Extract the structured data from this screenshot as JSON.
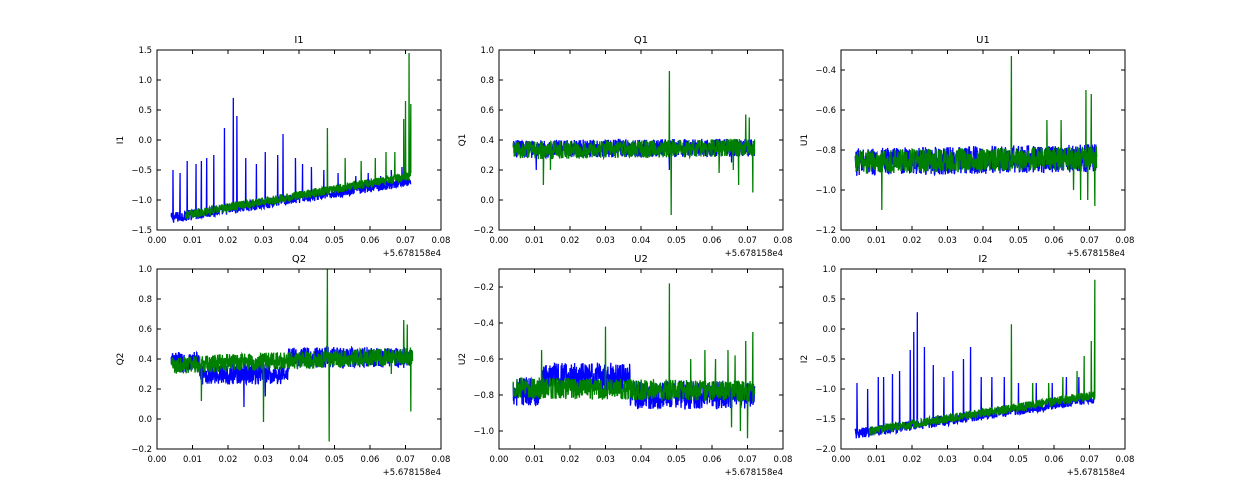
{
  "chart_data": [
    {
      "type": "line",
      "title": "I1",
      "ylabel": "I1",
      "xlabel": "",
      "x_offset_label": "+5.678158e4",
      "xlim": [
        0.0,
        0.08
      ],
      "ylim": [
        -1.5,
        1.5
      ],
      "xticks": [
        "0.00",
        "0.01",
        "0.02",
        "0.03",
        "0.04",
        "0.05",
        "0.06",
        "0.07",
        "0.08"
      ],
      "yticks": [
        "−1.5",
        "−1.0",
        "−0.5",
        "0.0",
        "0.5",
        "1.0",
        "1.5"
      ],
      "series": [
        {
          "color": "#0000ff",
          "x_range": [
            0.004,
            0.0715
          ],
          "base_start": -1.3,
          "base_end": -0.68,
          "band": 0.18,
          "spikes": [
            [
              0.0045,
              -0.5
            ],
            [
              0.0065,
              -0.55
            ],
            [
              0.0085,
              -0.35
            ],
            [
              0.011,
              -0.4
            ],
            [
              0.0125,
              -0.35
            ],
            [
              0.014,
              -0.3
            ],
            [
              0.016,
              -0.25
            ],
            [
              0.019,
              0.2
            ],
            [
              0.0215,
              0.7
            ],
            [
              0.0225,
              0.4
            ],
            [
              0.025,
              -0.3
            ],
            [
              0.028,
              -0.4
            ],
            [
              0.0305,
              -0.2
            ],
            [
              0.034,
              -0.25
            ],
            [
              0.0355,
              0.1
            ],
            [
              0.039,
              -0.3
            ],
            [
              0.041,
              -0.4
            ],
            [
              0.0435,
              -0.45
            ],
            [
              0.047,
              -0.5
            ],
            [
              0.051,
              -0.55
            ],
            [
              0.056,
              -0.6
            ],
            [
              0.0595,
              -0.55
            ],
            [
              0.063,
              -0.6
            ],
            [
              0.066,
              -0.5
            ],
            [
              0.069,
              -0.45
            ]
          ]
        },
        {
          "color": "#008000",
          "x_range": [
            0.008,
            0.0715
          ],
          "base_start": -1.25,
          "base_end": -0.6,
          "band": 0.15,
          "spikes": [
            [
              0.048,
              0.2
            ],
            [
              0.053,
              -0.3
            ],
            [
              0.0575,
              -0.35
            ],
            [
              0.0615,
              -0.3
            ],
            [
              0.0645,
              -0.2
            ],
            [
              0.067,
              -0.2
            ],
            [
              0.0695,
              0.35
            ],
            [
              0.07,
              0.65
            ],
            [
              0.071,
              1.45
            ],
            [
              0.0715,
              0.6
            ]
          ]
        }
      ]
    },
    {
      "type": "line",
      "title": "Q1",
      "ylabel": "Q1",
      "xlabel": "",
      "x_offset_label": "+5.678158e4",
      "xlim": [
        0.0,
        0.08
      ],
      "ylim": [
        -0.2,
        1.0
      ],
      "xticks": [
        "0.00",
        "0.01",
        "0.02",
        "0.03",
        "0.04",
        "0.05",
        "0.06",
        "0.07",
        "0.08"
      ],
      "yticks": [
        "−0.2",
        "0.0",
        "0.2",
        "0.4",
        "0.6",
        "0.8",
        "1.0"
      ],
      "series": [
        {
          "color": "#0000ff",
          "x_range": [
            0.004,
            0.072
          ],
          "base_start": 0.34,
          "base_end": 0.35,
          "band": 0.12,
          "spikes": [
            [
              0.0105,
              0.2
            ],
            [
              0.048,
              0.2
            ],
            [
              0.0655,
              0.25
            ]
          ]
        },
        {
          "color": "#008000",
          "x_range": [
            0.004,
            0.072
          ],
          "base_start": 0.33,
          "base_end": 0.35,
          "band": 0.12,
          "spikes": [
            [
              0.0125,
              0.1
            ],
            [
              0.0145,
              0.2
            ],
            [
              0.048,
              0.86
            ],
            [
              0.0485,
              -0.1
            ],
            [
              0.062,
              0.18
            ],
            [
              0.066,
              0.2
            ],
            [
              0.0675,
              0.1
            ],
            [
              0.0695,
              0.57
            ],
            [
              0.0705,
              0.55
            ],
            [
              0.0715,
              0.05
            ]
          ]
        }
      ]
    },
    {
      "type": "line",
      "title": "U1",
      "ylabel": "U1",
      "xlabel": "",
      "x_offset_label": "+5.678158e4",
      "xlim": [
        0.0,
        0.08
      ],
      "ylim": [
        -1.2,
        -0.3
      ],
      "xticks": [
        "0.00",
        "0.01",
        "0.02",
        "0.03",
        "0.04",
        "0.05",
        "0.06",
        "0.07",
        "0.08"
      ],
      "yticks": [
        "−1.2",
        "−1.0",
        "−0.8",
        "−0.6",
        "−0.4"
      ],
      "series": [
        {
          "color": "#0000ff",
          "x_range": [
            0.004,
            0.072
          ],
          "base_start": -0.86,
          "base_end": -0.84,
          "band": 0.14,
          "spikes": []
        },
        {
          "color": "#008000",
          "x_range": [
            0.004,
            0.072
          ],
          "base_start": -0.86,
          "base_end": -0.84,
          "band": 0.12,
          "spikes": [
            [
              0.0115,
              -1.1
            ],
            [
              0.048,
              -0.33
            ],
            [
              0.058,
              -0.65
            ],
            [
              0.062,
              -0.65
            ],
            [
              0.0655,
              -0.6
            ],
            [
              0.0675,
              -0.55
            ],
            [
              0.069,
              -0.5
            ],
            [
              0.0705,
              -0.52
            ],
            [
              0.0715,
              -0.45
            ],
            [
              0.0695,
              -1.05
            ],
            [
              0.0675,
              -1.05
            ],
            [
              0.0655,
              -1.0
            ],
            [
              0.0715,
              -1.08
            ]
          ]
        }
      ]
    },
    {
      "type": "line",
      "title": "Q2",
      "ylabel": "Q2",
      "xlabel": "",
      "x_offset_label": "+5.678158e4",
      "xlim": [
        0.0,
        0.08
      ],
      "ylim": [
        -0.2,
        1.0
      ],
      "xticks": [
        "0.00",
        "0.01",
        "0.02",
        "0.03",
        "0.04",
        "0.05",
        "0.06",
        "0.07",
        "0.08"
      ],
      "yticks": [
        "−0.2",
        "0.0",
        "0.2",
        "0.4",
        "0.6",
        "0.8",
        "1.0"
      ],
      "series": [
        {
          "color": "#0000ff",
          "x_range": [
            0.004,
            0.072
          ],
          "base_start": 0.38,
          "base_end": 0.42,
          "band": 0.14,
          "steps": [
            [
              0.004,
              0.012,
              0.38
            ],
            [
              0.012,
              0.037,
              0.3
            ],
            [
              0.037,
              0.072,
              0.41
            ]
          ],
          "spikes": [
            [
              0.0245,
              0.08
            ],
            [
              0.0305,
              0.15
            ]
          ]
        },
        {
          "color": "#008000",
          "x_range": [
            0.004,
            0.072
          ],
          "base_start": 0.36,
          "base_end": 0.42,
          "band": 0.12,
          "spikes": [
            [
              0.0125,
              0.12
            ],
            [
              0.03,
              -0.02
            ],
            [
              0.048,
              1.0
            ],
            [
              0.0485,
              -0.15
            ],
            [
              0.066,
              0.3
            ],
            [
              0.0695,
              0.66
            ],
            [
              0.0705,
              0.63
            ],
            [
              0.0715,
              0.05
            ]
          ]
        }
      ]
    },
    {
      "type": "line",
      "title": "U2",
      "ylabel": "U2",
      "xlabel": "",
      "x_offset_label": "+5.678158e4",
      "xlim": [
        0.0,
        0.08
      ],
      "ylim": [
        -1.1,
        -0.1
      ],
      "xticks": [
        "0.00",
        "0.01",
        "0.02",
        "0.03",
        "0.04",
        "0.05",
        "0.06",
        "0.07",
        "0.08"
      ],
      "yticks": [
        "−1.0",
        "−0.8",
        "−0.6",
        "−0.4",
        "−0.2"
      ],
      "series": [
        {
          "color": "#0000ff",
          "x_range": [
            0.004,
            0.072
          ],
          "base_start": -0.78,
          "base_end": -0.78,
          "band": 0.16,
          "steps": [
            [
              0.004,
              0.012,
              -0.78
            ],
            [
              0.012,
              0.037,
              -0.7
            ],
            [
              0.037,
              0.072,
              -0.8
            ]
          ],
          "spikes": []
        },
        {
          "color": "#008000",
          "x_range": [
            0.004,
            0.072
          ],
          "base_start": -0.76,
          "base_end": -0.78,
          "band": 0.12,
          "spikes": [
            [
              0.012,
              -0.55
            ],
            [
              0.03,
              -0.42
            ],
            [
              0.048,
              -0.18
            ],
            [
              0.054,
              -0.6
            ],
            [
              0.058,
              -0.55
            ],
            [
              0.061,
              -0.6
            ],
            [
              0.0645,
              -0.55
            ],
            [
              0.0665,
              -0.58
            ],
            [
              0.0695,
              -0.5
            ],
            [
              0.0715,
              -0.45
            ],
            [
              0.07,
              -1.04
            ],
            [
              0.068,
              -1.0
            ],
            [
              0.0655,
              -0.98
            ]
          ]
        }
      ]
    },
    {
      "type": "line",
      "title": "I2",
      "ylabel": "I2",
      "xlabel": "",
      "x_offset_label": "+5.678158e4",
      "xlim": [
        0.0,
        0.08
      ],
      "ylim": [
        -2.0,
        1.0
      ],
      "xticks": [
        "0.00",
        "0.01",
        "0.02",
        "0.03",
        "0.04",
        "0.05",
        "0.06",
        "0.07",
        "0.08"
      ],
      "yticks": [
        "−2.0",
        "−1.5",
        "−1.0",
        "−0.5",
        "0.0",
        "0.5",
        "1.0"
      ],
      "series": [
        {
          "color": "#0000ff",
          "x_range": [
            0.004,
            0.0715
          ],
          "base_start": -1.75,
          "base_end": -1.15,
          "band": 0.18,
          "spikes": [
            [
              0.0045,
              -0.9
            ],
            [
              0.0075,
              -1.0
            ],
            [
              0.0105,
              -0.8
            ],
            [
              0.012,
              -0.8
            ],
            [
              0.0145,
              -0.75
            ],
            [
              0.0165,
              -0.7
            ],
            [
              0.0195,
              -0.35
            ],
            [
              0.0205,
              -0.05
            ],
            [
              0.0215,
              0.28
            ],
            [
              0.0235,
              -0.3
            ],
            [
              0.026,
              -0.6
            ],
            [
              0.029,
              -0.8
            ],
            [
              0.0315,
              -0.7
            ],
            [
              0.0345,
              -0.5
            ],
            [
              0.0365,
              -0.3
            ],
            [
              0.0395,
              -0.8
            ],
            [
              0.0425,
              -0.8
            ],
            [
              0.046,
              -0.8
            ],
            [
              0.05,
              -0.9
            ],
            [
              0.055,
              -0.9
            ],
            [
              0.0595,
              -0.9
            ],
            [
              0.0635,
              -0.8
            ],
            [
              0.067,
              -0.8
            ]
          ]
        },
        {
          "color": "#008000",
          "x_range": [
            0.008,
            0.0715
          ],
          "base_start": -1.7,
          "base_end": -1.1,
          "band": 0.15,
          "spikes": [
            [
              0.048,
              0.08
            ],
            [
              0.054,
              -0.9
            ],
            [
              0.0585,
              -0.9
            ],
            [
              0.0625,
              -0.8
            ],
            [
              0.0665,
              -0.7
            ],
            [
              0.0685,
              -0.45
            ],
            [
              0.0705,
              -0.2
            ],
            [
              0.0715,
              0.82
            ]
          ]
        }
      ]
    }
  ]
}
